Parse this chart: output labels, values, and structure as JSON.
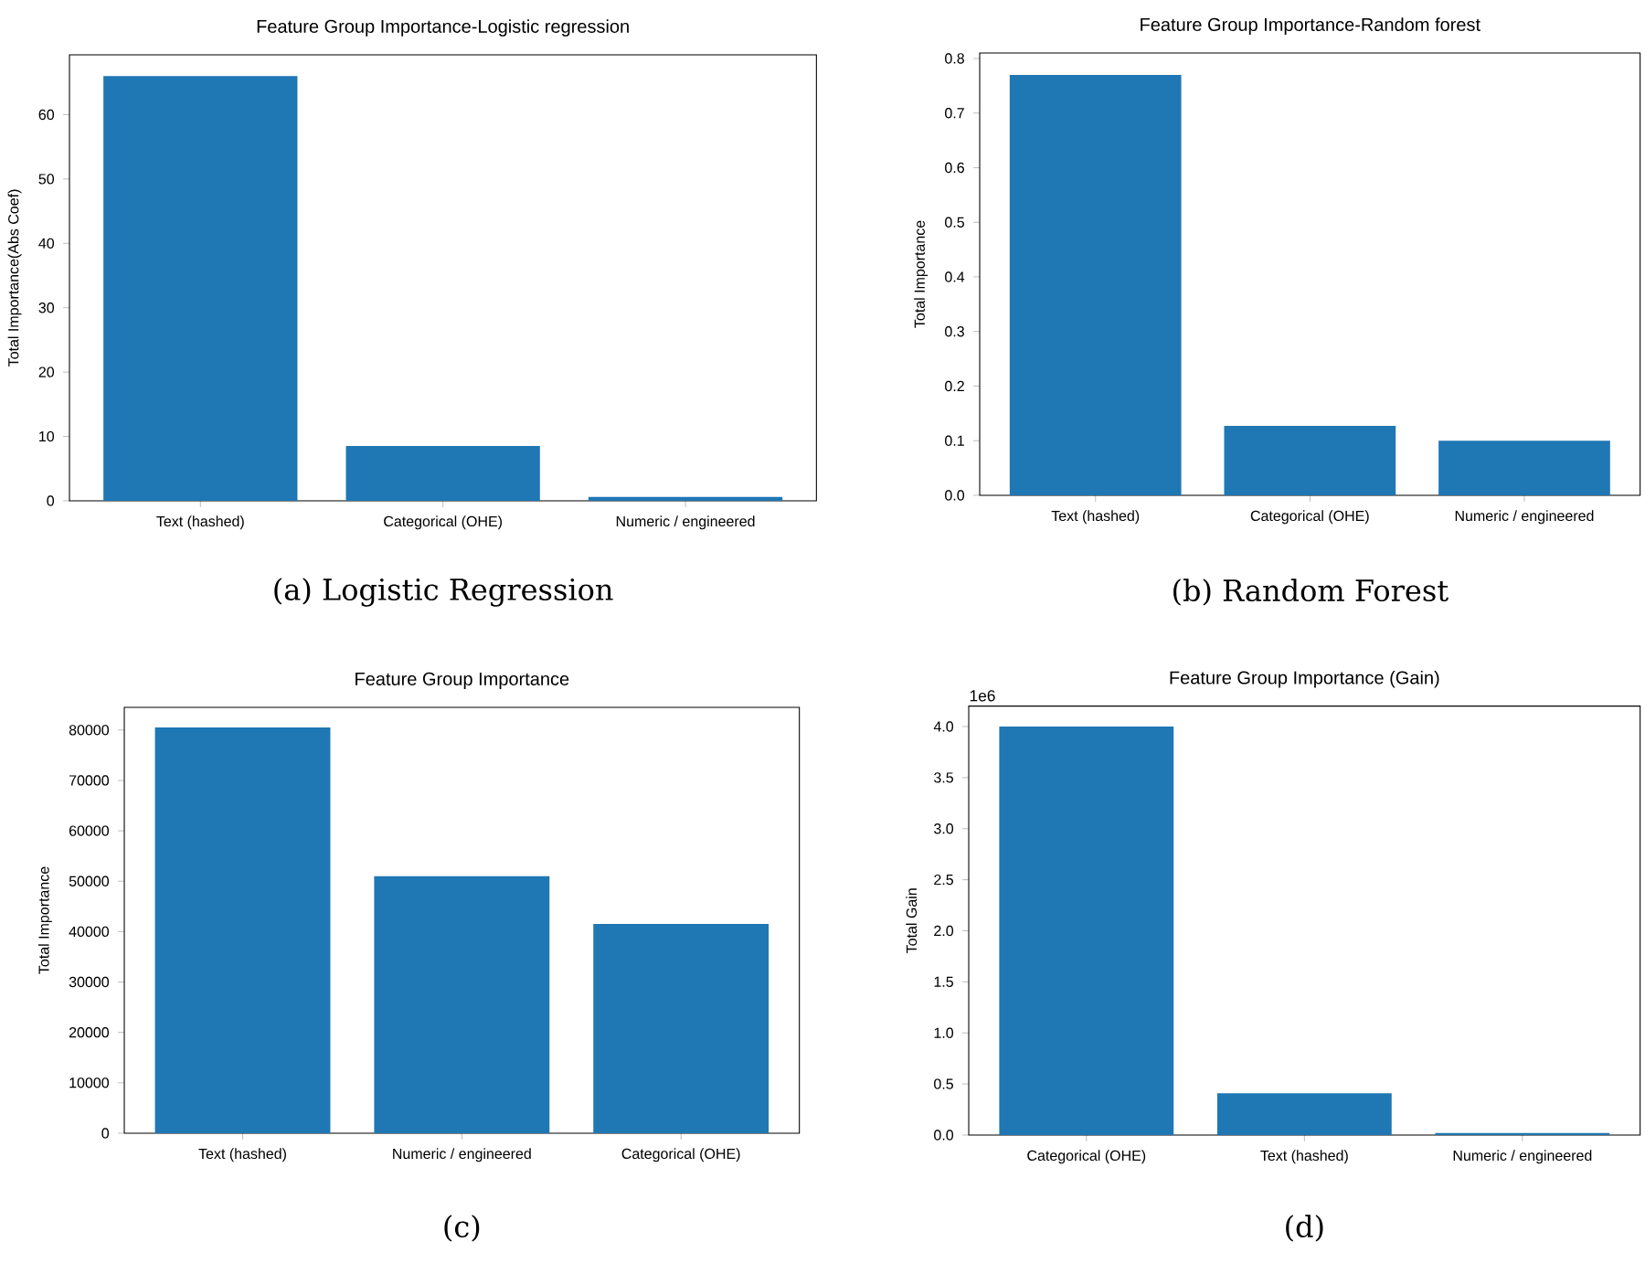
{
  "chart_data": [
    {
      "type": "bar",
      "title": "Feature Group Importance-Logistic regression",
      "ylabel": "Total Importance(Abs Coef)",
      "categories": [
        "Text (hashed)",
        "Categorical (OHE)",
        "Numeric / engineered"
      ],
      "values": [
        66,
        8.5,
        0.6
      ],
      "color": "#1f77b4",
      "ylim": [
        0,
        69.3
      ],
      "yticks": [
        0,
        10,
        20,
        30,
        40,
        50,
        60
      ],
      "annotations": [
        "(a) Logistic Regression"
      ]
    },
    {
      "type": "bar",
      "title": "Feature Group Importance-Random forest",
      "ylabel": "Total Importance",
      "categories": [
        "Text (hashed)",
        "Categorical (OHE)",
        "Numeric / engineered"
      ],
      "values": [
        0.77,
        0.127,
        0.1
      ],
      "color": "#1f77b4",
      "ylim": [
        0,
        0.81
      ],
      "yticks": [
        {
          "value": 0,
          "label": "0.0"
        },
        0.1,
        0.2,
        0.3,
        0.4,
        0.5,
        0.6,
        0.7,
        0.8
      ],
      "annotations": [
        "(b) Random Forest"
      ]
    },
    {
      "type": "bar",
      "title": "Feature Group Importance",
      "ylabel": "Total Importance",
      "categories": [
        "Text (hashed)",
        "Numeric / engineered",
        "Categorical (OHE)"
      ],
      "values": [
        80500,
        51000,
        41500
      ],
      "color": "#1f77b4",
      "ylim": [
        0,
        84500
      ],
      "yticks": [
        0,
        10000,
        20000,
        30000,
        40000,
        50000,
        60000,
        70000,
        80000
      ],
      "annotations": [
        "(c)"
      ]
    },
    {
      "type": "bar",
      "title": "Feature Group Importance (Gain)",
      "ylabel": "Total Gain",
      "categories": [
        "Categorical (OHE)",
        "Text (hashed)",
        "Numeric / engineered"
      ],
      "values": [
        4.0,
        0.41,
        0.02
      ],
      "color": "#1f77b4",
      "ylim": [
        0,
        4.2
      ],
      "yticks": [
        {
          "value": 0,
          "label": "0.0"
        },
        0.5,
        {
          "value": 1,
          "label": "1.0"
        },
        1.5,
        {
          "value": 2,
          "label": "2.0"
        },
        2.5,
        {
          "value": 3,
          "label": "3.0"
        },
        3.5,
        {
          "value": 4,
          "label": "4.0"
        }
      ],
      "annotations": [
        "1e6",
        "(d)"
      ]
    }
  ]
}
